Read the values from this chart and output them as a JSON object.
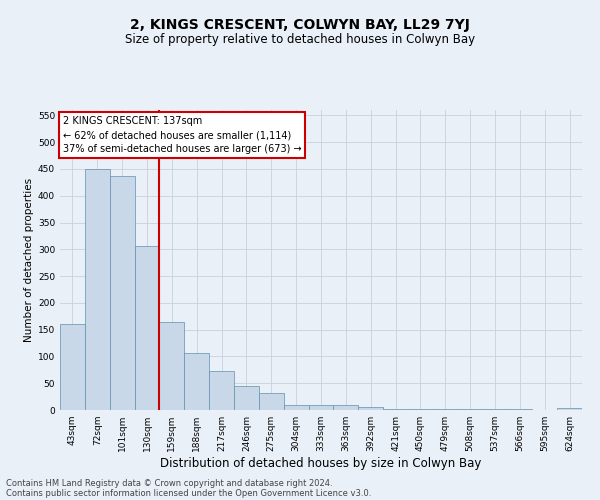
{
  "title": "2, KINGS CRESCENT, COLWYN BAY, LL29 7YJ",
  "subtitle": "Size of property relative to detached houses in Colwyn Bay",
  "xlabel": "Distribution of detached houses by size in Colwyn Bay",
  "ylabel": "Number of detached properties",
  "footer_line1": "Contains HM Land Registry data © Crown copyright and database right 2024.",
  "footer_line2": "Contains public sector information licensed under the Open Government Licence v3.0.",
  "annotation_title": "2 KINGS CRESCENT: 137sqm",
  "annotation_line1": "← 62% of detached houses are smaller (1,114)",
  "annotation_line2": "37% of semi-detached houses are larger (673) →",
  "bar_color": "#c8d8e8",
  "bar_edge_color": "#6090b0",
  "vline_color": "#cc0000",
  "bg_color": "#eaf0f8",
  "categories": [
    "43sqm",
    "72sqm",
    "101sqm",
    "130sqm",
    "159sqm",
    "188sqm",
    "217sqm",
    "246sqm",
    "275sqm",
    "304sqm",
    "333sqm",
    "363sqm",
    "392sqm",
    "421sqm",
    "450sqm",
    "479sqm",
    "508sqm",
    "537sqm",
    "566sqm",
    "595sqm",
    "624sqm"
  ],
  "values": [
    160,
    450,
    437,
    307,
    165,
    106,
    73,
    44,
    32,
    10,
    10,
    10,
    5,
    2,
    2,
    2,
    1,
    1,
    1,
    0,
    4
  ],
  "ylim": [
    0,
    560
  ],
  "yticks": [
    0,
    50,
    100,
    150,
    200,
    250,
    300,
    350,
    400,
    450,
    500,
    550
  ],
  "vline_x_index": 3,
  "annotation_box_color": "#ffffff",
  "annotation_box_edge": "#cc0000",
  "grid_color": "#c8d0dc",
  "title_fontsize": 10,
  "subtitle_fontsize": 8.5,
  "ylabel_fontsize": 7.5,
  "xlabel_fontsize": 8.5,
  "tick_fontsize": 6.5,
  "ann_fontsize": 7.0,
  "footer_fontsize": 6.0
}
